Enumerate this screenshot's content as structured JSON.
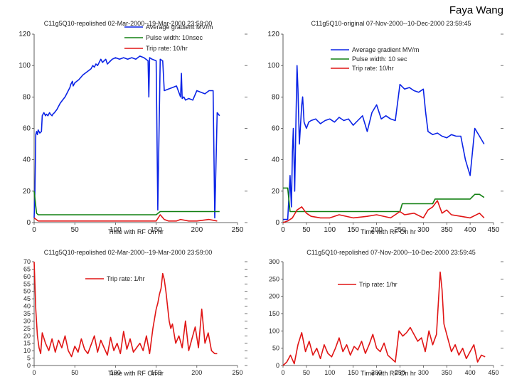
{
  "author": "Faya Wang",
  "colors": {
    "gradient": "#0a23e6",
    "pulse": "#128012",
    "trip": "#e01515",
    "axis": "#333333"
  },
  "chart_data": [
    {
      "type": "line",
      "title": "C11g5Q10-repolished 02-Mar-2000--19-Mar-2000 23:59:00",
      "xlabel": "Time with RF On hr",
      "ylabel": "",
      "xlim": [
        0,
        250
      ],
      "ylim": [
        0,
        120
      ],
      "xticks": [
        "0",
        "50",
        "100",
        "150",
        "200",
        "250"
      ],
      "yticks": [
        "0",
        "20",
        "40",
        "60",
        "80",
        "100",
        "120"
      ],
      "legend_position": "top-right",
      "series": [
        {
          "name": "Average gradient MV/m",
          "color": "#0a23e6",
          "x": [
            0,
            1,
            2,
            3,
            4,
            5,
            7,
            9,
            10,
            12,
            14,
            15,
            17,
            19,
            20,
            22,
            23,
            25,
            28,
            30,
            32,
            35,
            38,
            40,
            42,
            44,
            45,
            47,
            48,
            50,
            55,
            60,
            65,
            70,
            72,
            74,
            76,
            78,
            80,
            82,
            84,
            86,
            88,
            90,
            92,
            94,
            96,
            100,
            105,
            110,
            115,
            120,
            125,
            130,
            135,
            140,
            141,
            142,
            145,
            150,
            152,
            155,
            158,
            160,
            165,
            170,
            175,
            180,
            181,
            182,
            184,
            186,
            190,
            195,
            200,
            205,
            210,
            215,
            220,
            222,
            225,
            228
          ],
          "y": [
            3,
            20,
            56,
            58,
            56,
            59,
            57,
            58,
            68,
            70,
            68,
            69,
            68,
            70,
            69,
            68,
            69,
            70,
            72,
            74,
            76,
            78,
            80,
            82,
            84,
            86,
            88,
            90,
            87,
            89,
            91,
            94,
            96,
            98,
            100,
            99,
            101,
            100,
            102,
            104,
            102,
            103,
            104,
            101,
            102,
            103,
            104,
            105,
            104,
            105,
            104,
            105,
            104,
            106,
            105,
            103,
            80,
            105,
            104,
            103,
            8,
            104,
            103,
            84,
            85,
            86,
            87,
            80,
            95,
            79,
            80,
            78,
            79,
            78,
            84,
            83,
            82,
            84,
            84,
            3,
            70,
            68
          ]
        },
        {
          "name": "Pulse width: 10nsec",
          "color": "#128012",
          "x": [
            0,
            3,
            5,
            150,
            155,
            225,
            228
          ],
          "y": [
            20,
            6,
            5,
            5,
            7,
            7,
            7
          ]
        },
        {
          "name": "Trip rate: 10/hr",
          "color": "#e01515",
          "x": [
            0,
            5,
            10,
            50,
            100,
            150,
            155,
            160,
            165,
            175,
            180,
            190,
            200,
            215,
            225
          ],
          "y": [
            3,
            1,
            1,
            1,
            1,
            1,
            5,
            2,
            1,
            1,
            2,
            1,
            1,
            2,
            1
          ]
        }
      ]
    },
    {
      "type": "line",
      "title": "C11g5Q10-original 07-Nov-2000--10-Dec-2000 23:59:45",
      "xlabel": "Time with RF On hr",
      "ylabel": "",
      "xlim": [
        0,
        450
      ],
      "ylim": [
        0,
        120
      ],
      "xticks": [
        "0",
        "50",
        "100",
        "150",
        "200",
        "250",
        "300",
        "350",
        "400",
        "450"
      ],
      "yticks": [
        "0",
        "20",
        "40",
        "60",
        "80",
        "100",
        "120"
      ],
      "legend_position": "top-right",
      "series": [
        {
          "name": "Average gradient MV/m",
          "color": "#0a23e6",
          "x": [
            0,
            10,
            15,
            18,
            20,
            22,
            25,
            28,
            30,
            32,
            35,
            38,
            40,
            42,
            45,
            50,
            55,
            60,
            70,
            80,
            90,
            100,
            110,
            120,
            130,
            140,
            150,
            160,
            170,
            180,
            190,
            200,
            210,
            220,
            230,
            240,
            250,
            260,
            270,
            280,
            290,
            300,
            305,
            310,
            320,
            330,
            340,
            350,
            360,
            370,
            380,
            390,
            400,
            410,
            420,
            430
          ],
          "y": [
            2,
            2,
            30,
            10,
            45,
            60,
            20,
            70,
            100,
            85,
            50,
            65,
            75,
            80,
            64,
            60,
            64,
            65,
            66,
            63,
            65,
            66,
            64,
            67,
            65,
            66,
            62,
            65,
            68,
            58,
            70,
            75,
            66,
            68,
            66,
            65,
            88,
            85,
            86,
            84,
            83,
            85,
            70,
            58,
            56,
            57,
            55,
            54,
            56,
            55,
            55,
            40,
            30,
            60,
            55,
            50
          ]
        },
        {
          "name": "Pulse width: 10 sec",
          "color": "#128012",
          "x": [
            0,
            10,
            15,
            20,
            25,
            30,
            250,
            255,
            320,
            325,
            400,
            410,
            420,
            430
          ],
          "y": [
            22,
            22,
            7,
            7,
            7,
            7,
            7,
            12,
            12,
            15,
            15,
            18,
            18,
            16
          ]
        },
        {
          "name": "Trip rate: 10/hr",
          "color": "#e01515",
          "x": [
            0,
            10,
            20,
            30,
            40,
            50,
            60,
            80,
            100,
            120,
            150,
            180,
            200,
            230,
            250,
            260,
            280,
            300,
            310,
            320,
            330,
            340,
            350,
            360,
            380,
            400,
            420,
            430
          ],
          "y": [
            0,
            1,
            3,
            8,
            10,
            6,
            4,
            3,
            3,
            5,
            3,
            4,
            5,
            3,
            7,
            5,
            6,
            3,
            8,
            10,
            14,
            6,
            8,
            5,
            4,
            3,
            6,
            3
          ]
        }
      ]
    },
    {
      "type": "line",
      "title": "C11g5Q10-repolished 02-Mar-2000--19-Mar-2000 23:59:00",
      "xlabel": "Time with RF On hr",
      "ylabel": "",
      "xlim": [
        0,
        250
      ],
      "ylim": [
        0,
        70
      ],
      "xticks": [
        "0",
        "50",
        "100",
        "150",
        "200",
        "250"
      ],
      "yticks": [
        "0",
        "5",
        "10",
        "15",
        "20",
        "25",
        "30",
        "35",
        "40",
        "45",
        "50",
        "55",
        "60",
        "65",
        "70"
      ],
      "legend_position": "top-center",
      "series": [
        {
          "name": "Trip rate: 1/hr",
          "color": "#e01515",
          "x": [
            0,
            2,
            4,
            6,
            8,
            10,
            14,
            18,
            22,
            26,
            30,
            34,
            38,
            42,
            46,
            50,
            54,
            58,
            62,
            66,
            70,
            74,
            78,
            82,
            86,
            90,
            94,
            98,
            102,
            106,
            110,
            114,
            118,
            122,
            126,
            130,
            134,
            138,
            142,
            146,
            150,
            152,
            154,
            156,
            158,
            160,
            162,
            164,
            166,
            168,
            170,
            174,
            178,
            182,
            186,
            190,
            194,
            198,
            202,
            206,
            210,
            214,
            218,
            222,
            225
          ],
          "y": [
            70,
            38,
            20,
            12,
            8,
            22,
            15,
            10,
            18,
            9,
            17,
            12,
            20,
            10,
            6,
            13,
            9,
            18,
            11,
            8,
            14,
            20,
            9,
            17,
            12,
            7,
            19,
            10,
            15,
            8,
            23,
            11,
            18,
            9,
            12,
            15,
            10,
            20,
            8,
            25,
            38,
            42,
            48,
            52,
            62,
            58,
            50,
            40,
            30,
            25,
            28,
            15,
            20,
            12,
            30,
            10,
            18,
            26,
            12,
            38,
            15,
            22,
            10,
            8,
            8
          ]
        }
      ]
    },
    {
      "type": "line",
      "title": "C11g5Q10-repolished 07-Nov-2000--10-Dec-2000 23:59:45",
      "xlabel": "Time with RF On hr",
      "ylabel": "",
      "xlim": [
        0,
        450
      ],
      "ylim": [
        0,
        300
      ],
      "xticks": [
        "0",
        "50",
        "100",
        "150",
        "200",
        "250",
        "300",
        "350",
        "400",
        "450"
      ],
      "yticks": [
        "0",
        "50",
        "100",
        "150",
        "200",
        "250",
        "300"
      ],
      "legend_position": "top-center",
      "series": [
        {
          "name": "Trip rate: 1/hr",
          "color": "#e01515",
          "x": [
            0,
            8,
            16,
            24,
            32,
            40,
            48,
            56,
            64,
            72,
            80,
            88,
            96,
            104,
            112,
            120,
            128,
            136,
            144,
            152,
            160,
            168,
            176,
            184,
            192,
            200,
            208,
            216,
            224,
            232,
            240,
            248,
            256,
            264,
            272,
            280,
            288,
            296,
            304,
            312,
            320,
            328,
            336,
            340,
            344,
            352,
            360,
            368,
            376,
            384,
            392,
            400,
            408,
            416,
            424,
            432
          ],
          "y": [
            0,
            10,
            30,
            5,
            60,
            95,
            40,
            70,
            30,
            50,
            20,
            60,
            35,
            25,
            50,
            80,
            40,
            60,
            30,
            55,
            45,
            70,
            35,
            60,
            90,
            50,
            40,
            65,
            30,
            20,
            10,
            100,
            85,
            95,
            110,
            90,
            70,
            80,
            40,
            100,
            60,
            90,
            270,
            220,
            120,
            80,
            40,
            60,
            30,
            50,
            20,
            40,
            60,
            10,
            30,
            25
          ]
        }
      ]
    }
  ]
}
